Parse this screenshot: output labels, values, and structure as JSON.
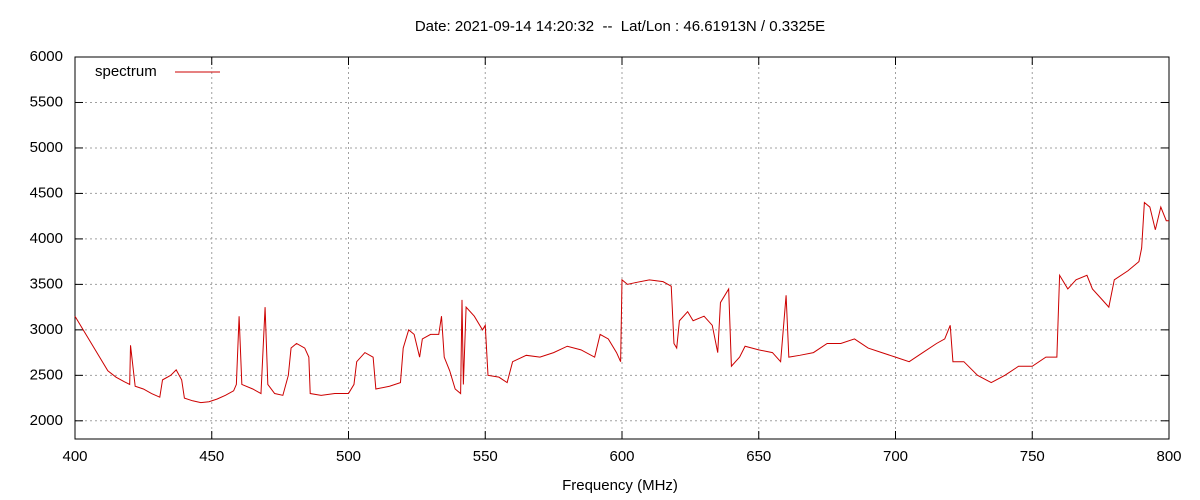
{
  "chart_data": {
    "type": "line",
    "title": "Date: 2021-09-14 14:20:32  --  Lat/Lon : 46.61913N / 0.3325E",
    "x_label": "Frequency (MHz)",
    "x": [
      400,
      403,
      406,
      409,
      412,
      415,
      418,
      420,
      420.3,
      422,
      425,
      428,
      431,
      432,
      435,
      437,
      439,
      440,
      443,
      446,
      449,
      452,
      455,
      458,
      459,
      460,
      461,
      465,
      468,
      469.5,
      470.5,
      473,
      476,
      478,
      479,
      481,
      484,
      485.5,
      486,
      490,
      495,
      500,
      502,
      503,
      506,
      509,
      510,
      515,
      519,
      520,
      522,
      524,
      526,
      527,
      530,
      533,
      534,
      535,
      537,
      539,
      541,
      541.5,
      542,
      543,
      546,
      549,
      550,
      551,
      555,
      558,
      560,
      565,
      570,
      575,
      580,
      585,
      590,
      592,
      595,
      598,
      599.5,
      600,
      602,
      605,
      610,
      615,
      618,
      619,
      620,
      621,
      624,
      626,
      630,
      633,
      635,
      636,
      639,
      640,
      643,
      645,
      650,
      655,
      658,
      660,
      661,
      665,
      670,
      675,
      680,
      685,
      690,
      695,
      700,
      705,
      710,
      715,
      718,
      720,
      721,
      725,
      730,
      735,
      740,
      745,
      750,
      755,
      759,
      760,
      763,
      766,
      770,
      772,
      775,
      778,
      780,
      785,
      789,
      790,
      791,
      793,
      795,
      797,
      799,
      800
    ],
    "series": [
      {
        "name": "spectrum",
        "color": "#cc0000",
        "values": [
          3150,
          3000,
          2850,
          2700,
          2550,
          2480,
          2430,
          2400,
          2830,
          2380,
          2350,
          2300,
          2260,
          2450,
          2500,
          2560,
          2450,
          2250,
          2220,
          2200,
          2210,
          2240,
          2280,
          2330,
          2400,
          3150,
          2400,
          2350,
          2300,
          3250,
          2400,
          2300,
          2280,
          2500,
          2800,
          2850,
          2800,
          2700,
          2300,
          2280,
          2300,
          2300,
          2400,
          2650,
          2750,
          2700,
          2350,
          2380,
          2420,
          2800,
          3000,
          2950,
          2700,
          2900,
          2950,
          2950,
          3150,
          2700,
          2550,
          2350,
          2300,
          3330,
          2400,
          3250,
          3150,
          3000,
          3050,
          2500,
          2480,
          2420,
          2650,
          2720,
          2700,
          2750,
          2820,
          2780,
          2700,
          2950,
          2900,
          2750,
          2650,
          3550,
          3500,
          3520,
          3550,
          3530,
          3480,
          2850,
          2800,
          3100,
          3200,
          3100,
          3150,
          3050,
          2750,
          3300,
          3450,
          2600,
          2700,
          2820,
          2780,
          2750,
          2650,
          3380,
          2700,
          2720,
          2750,
          2850,
          2850,
          2900,
          2800,
          2750,
          2700,
          2650,
          2750,
          2850,
          2900,
          3050,
          2650,
          2650,
          2500,
          2420,
          2500,
          2600,
          2600,
          2700,
          2700,
          3600,
          3450,
          3550,
          3600,
          3450,
          3350,
          3250,
          3550,
          3650,
          3750,
          3900,
          4400,
          4350,
          4100,
          4350,
          4200,
          4200
        ]
      }
    ],
    "xlim": [
      400,
      800
    ],
    "xticks": [
      400,
      450,
      500,
      550,
      600,
      650,
      700,
      750,
      800
    ],
    "ylim": [
      1800,
      6000
    ],
    "yticks": [
      2000,
      2500,
      3000,
      3500,
      4000,
      4500,
      5000,
      5500,
      6000
    ],
    "grid": true,
    "legend": "top-left"
  }
}
